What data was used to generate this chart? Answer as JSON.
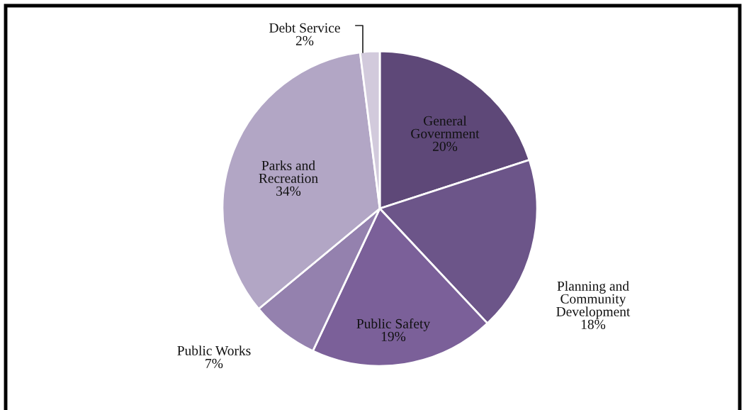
{
  "chart_data": {
    "type": "pie",
    "categories": [
      "General Government",
      "Planning and Community Development",
      "Public Safety",
      "Public Works",
      "Parks and Recreation",
      "Debt Service"
    ],
    "values": [
      20,
      18,
      19,
      7,
      34,
      2
    ],
    "colors": [
      "#5e4878",
      "#6c5589",
      "#7b6099",
      "#9481ae",
      "#b2a6c5",
      "#d2cadc"
    ],
    "value_labels": [
      "20%",
      "18%",
      "19%",
      "7%",
      "34%",
      "2%"
    ],
    "legend": false
  }
}
